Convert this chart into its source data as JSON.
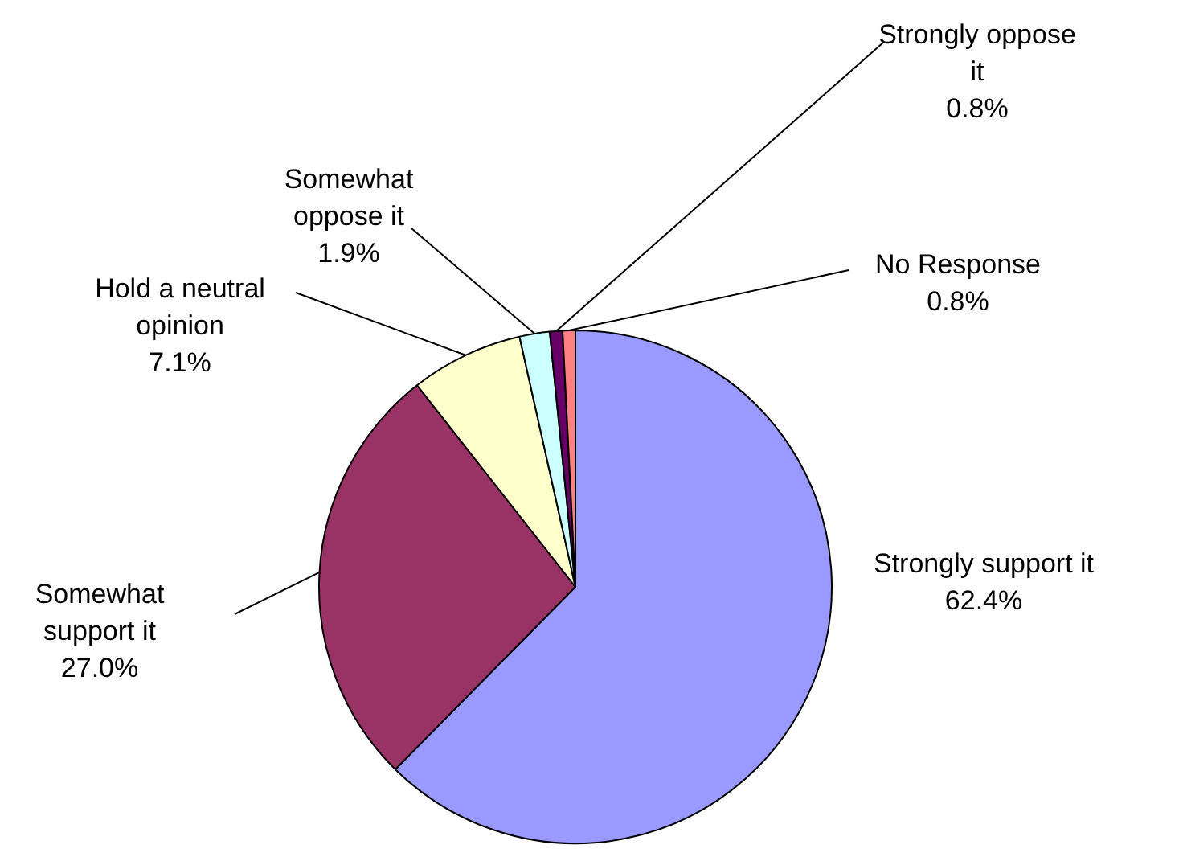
{
  "chart_data": {
    "type": "pie",
    "categories": [
      "Strongly support it",
      "Somewhat support it",
      "Hold a neutral opinion",
      "Somewhat oppose it",
      "Strongly oppose it",
      "No Response"
    ],
    "values": [
      62.4,
      27.0,
      7.1,
      1.9,
      0.8,
      0.8
    ],
    "colors": [
      "#9999ff",
      "#993366",
      "#ffffcc",
      "#ccffff",
      "#660066",
      "#ff8080"
    ],
    "value_labels": [
      "62.4%",
      "27.0%",
      "7.1%",
      "1.9%",
      "0.8%",
      "0.8%"
    ],
    "legend": false
  }
}
